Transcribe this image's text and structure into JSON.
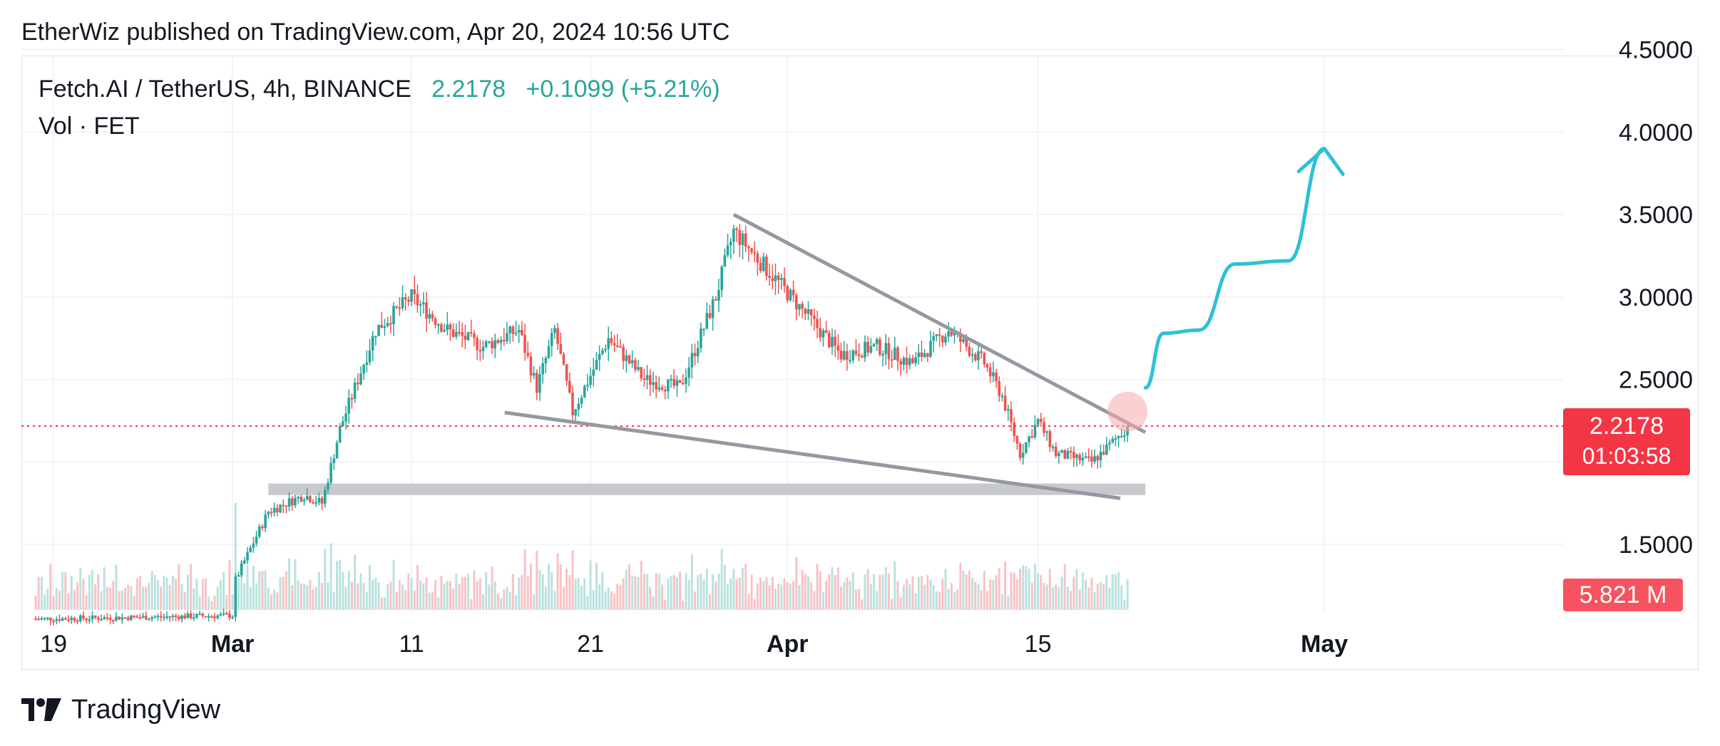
{
  "header": {
    "published_text": "EtherWiz published on TradingView.com, Apr 20, 2024 10:56 UTC"
  },
  "legend": {
    "symbol": "Fetch.AI / TetherUS, 4h, BINANCE",
    "price": "2.2178",
    "change": "+0.1099 (+5.21%)",
    "volume_label": "Vol · FET"
  },
  "price_tag": {
    "price": "2.2178",
    "countdown": "01:03:58"
  },
  "volume_tag": "5.821 M",
  "brand": "TradingView",
  "colors": {
    "up": "#26a69a",
    "down": "#ef5350",
    "price_line": "#f23645",
    "projection": "#2ec0d6",
    "trendline": "#9598a1",
    "support_zone": "#c8c9cc"
  },
  "chart_data": {
    "type": "candlestick",
    "title": "Fetch.AI / TetherUS, 4h, BINANCE",
    "y_ticks": [
      "1.5000",
      "2.5000",
      "3.0000",
      "3.5000",
      "4.0000",
      "4.5000"
    ],
    "x_ticks": [
      "19",
      "Mar",
      "11",
      "21",
      "Apr",
      "15",
      "May"
    ],
    "ylim": [
      1.0,
      4.55
    ],
    "current_price": 2.2178,
    "grid": true,
    "anchors": [
      {
        "x": "Feb 19",
        "close": 1.05
      },
      {
        "x": "Feb 29",
        "close": 1.07
      },
      {
        "x": "Mar 1",
        "close": 1.25
      },
      {
        "x": "Mar 3",
        "close": 1.7
      },
      {
        "x": "Mar 5",
        "close": 1.8
      },
      {
        "x": "Mar 6",
        "close": 1.75
      },
      {
        "x": "Mar 7",
        "close": 2.2
      },
      {
        "x": "Mar 9",
        "close": 2.8
      },
      {
        "x": "Mar 11",
        "close": 3.0
      },
      {
        "x": "Mar 13",
        "close": 2.8
      },
      {
        "x": "Mar 15",
        "close": 2.7
      },
      {
        "x": "Mar 17",
        "close": 2.8
      },
      {
        "x": "Mar 18",
        "close": 2.45
      },
      {
        "x": "Mar 19",
        "close": 2.8
      },
      {
        "x": "Mar 20",
        "close": 2.3
      },
      {
        "x": "Mar 22",
        "close": 2.75
      },
      {
        "x": "Mar 24",
        "close": 2.5
      },
      {
        "x": "Mar 26",
        "close": 2.45
      },
      {
        "x": "Mar 28",
        "close": 3.0
      },
      {
        "x": "Mar 29",
        "close": 3.4
      },
      {
        "x": "Mar 31",
        "close": 3.15
      },
      {
        "x": "Apr 2",
        "close": 2.9
      },
      {
        "x": "Apr 4",
        "close": 2.65
      },
      {
        "x": "Apr 6",
        "close": 2.7
      },
      {
        "x": "Apr 8",
        "close": 2.6
      },
      {
        "x": "Apr 10",
        "close": 2.8
      },
      {
        "x": "Apr 12",
        "close": 2.6
      },
      {
        "x": "Apr 13",
        "close": 2.4
      },
      {
        "x": "Apr 14",
        "close": 2.05
      },
      {
        "x": "Apr 15",
        "close": 2.25
      },
      {
        "x": "Apr 16",
        "close": 2.05
      },
      {
        "x": "Apr 18",
        "close": 2.0
      },
      {
        "x": "Apr 19",
        "close": 2.1
      },
      {
        "x": "Apr 20",
        "close": 2.2178
      }
    ],
    "volume_highlight": "5.821 M",
    "drawings": {
      "descending_resistance": {
        "from": {
          "x": "Mar 29",
          "y": 3.5
        },
        "to": {
          "x": "Apr 21",
          "y": 2.18
        }
      },
      "descending_support": {
        "from": {
          "x": "Mar 17",
          "y": 2.3
        },
        "to": {
          "x": "Apr 20",
          "y": 1.78
        }
      },
      "support_zone": {
        "from_x": "Mar 3",
        "to_x": "Apr 21",
        "y_low": 1.8,
        "y_high": 1.87
      },
      "breakout_marker": {
        "x": "Apr 20",
        "y": 2.28
      },
      "projection_path": [
        {
          "x": "Apr 21",
          "y": 2.45
        },
        {
          "x": "Apr 22",
          "y": 2.78
        },
        {
          "x": "Apr 24",
          "y": 2.8
        },
        {
          "x": "Apr 26",
          "y": 3.2
        },
        {
          "x": "Apr 29",
          "y": 3.22
        },
        {
          "x": "May 1",
          "y": 3.9
        }
      ]
    }
  }
}
